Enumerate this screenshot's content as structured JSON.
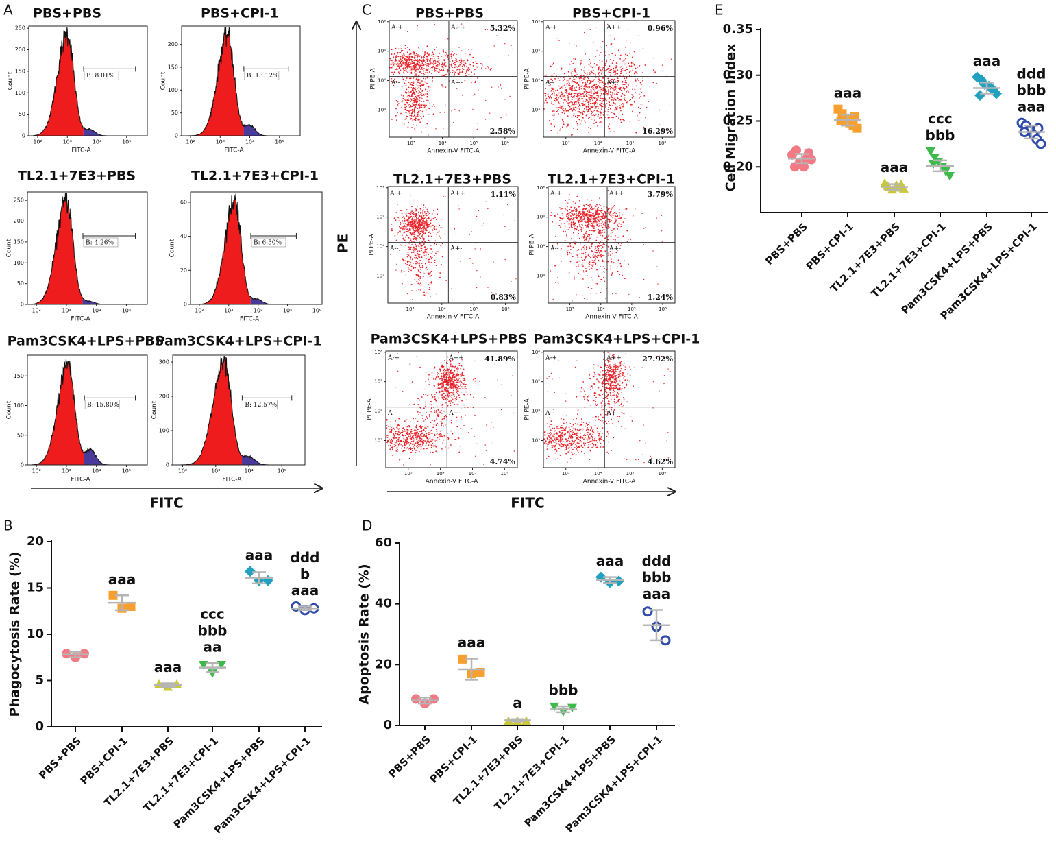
{
  "chart_data": [
    {
      "type": "histogram",
      "panel_label": "A",
      "axis_title": "FITC",
      "ylabel": "Count",
      "xlabel": "FITC-A",
      "log_x": true,
      "xticks": [
        {
          "value": 100,
          "label": "10²"
        },
        {
          "value": 1000,
          "label": "10³"
        },
        {
          "value": 10000,
          "label": "10⁴"
        },
        {
          "value": 100000,
          "label": "10⁵"
        },
        {
          "value": 1000000,
          "label": "10⁶"
        }
      ],
      "colors": {
        "negative": "#ee1c1c",
        "positive": "#4a3a9a"
      },
      "plots": [
        {
          "title": "PBS+PBS",
          "gate_label": "B: 8.01%",
          "ylim": [
            0,
            255
          ],
          "yticks": [
            0,
            50,
            100,
            150,
            200,
            250
          ],
          "xlim": [
            50,
            500000
          ]
        },
        {
          "title": "PBS+CPI-1",
          "gate_label": "B: 13.12%",
          "ylim": [
            0,
            240
          ],
          "yticks": [
            0,
            50,
            100,
            150,
            200
          ],
          "xlim": [
            50,
            500000
          ]
        },
        {
          "title": "TL2.1+7E3+PBS",
          "gate_label": "B: 4.26%",
          "ylim": [
            0,
            270
          ],
          "yticks": [
            0,
            50,
            100,
            150,
            200,
            250
          ],
          "xlim": [
            50,
            500000
          ]
        },
        {
          "title": "TL2.1+7E3+CPI-1",
          "gate_label": "B: 6.50%",
          "ylim": [
            0,
            66
          ],
          "yticks": [
            0,
            20,
            40,
            60
          ],
          "xlim": [
            50,
            1500000
          ]
        },
        {
          "title": "Pam3CSK4+LPS+PBS",
          "gate_label": "B: 15.80%",
          "ylim": [
            0,
            185
          ],
          "yticks": [
            0,
            50,
            100,
            150
          ],
          "xlim": [
            50,
            500000
          ]
        },
        {
          "title": "Pam3CSK4+LPS+CPI-1",
          "gate_label": "B: 12.57%",
          "ylim": [
            0,
            320
          ],
          "yticks": [
            0,
            100,
            200,
            300
          ],
          "xlim": [
            50,
            500000
          ]
        }
      ]
    },
    {
      "type": "scatter",
      "panel_label": "C",
      "x_axis_title": "FITC",
      "y_axis_title": "PE",
      "xlabel": "Annexin-V FITC-A",
      "ylabel": "PI PE-A",
      "quadrant_labels": [
        "A-+",
        "A++",
        "A--",
        "A+-"
      ],
      "color": "#e8242a",
      "log_x": true,
      "log_y": true,
      "xlim": [
        200,
        2500000
      ],
      "ylim": [
        120,
        1100000
      ],
      "xticks": [
        {
          "value": 1000,
          "label": "10³"
        },
        {
          "value": 10000,
          "label": "10⁴"
        },
        {
          "value": 100000,
          "label": "10⁵"
        },
        {
          "value": 1000000,
          "label": "10⁶"
        }
      ],
      "yticks": [
        {
          "value": 1000,
          "label": "10³"
        },
        {
          "value": 10000,
          "label": "10⁴"
        },
        {
          "value": 100000,
          "label": "10⁵"
        },
        {
          "value": 1000000,
          "label": "10⁶"
        }
      ],
      "plots": [
        {
          "title": "PBS+PBS",
          "upper_right": "5.32%",
          "lower_right": "2.58%"
        },
        {
          "title": "PBS+CPI-1",
          "upper_right": "0.96%",
          "lower_right": "16.29%"
        },
        {
          "title": "TL2.1+7E3+PBS",
          "upper_right": "1.11%",
          "lower_right": "0.83%"
        },
        {
          "title": "TL2.1+7E3+CPI-1",
          "upper_right": "3.79%",
          "lower_right": "1.24%"
        },
        {
          "title": "Pam3CSK4+LPS+PBS",
          "upper_right": "41.89%",
          "lower_right": "4.74%"
        },
        {
          "title": "Pam3CSK4+LPS+CPI-1",
          "upper_right": "27.92%",
          "lower_right": "4.62%"
        }
      ]
    },
    {
      "type": "dot",
      "panel_label": "B",
      "ylabel": "Phagocytosis Rate (%)",
      "categories": [
        "PBS+PBS",
        "PBS+CPI-1",
        "TL2.1+7E3+PBS",
        "TL2.1+7E3+CPI-1",
        "Pam3CSK4+LPS+PBS",
        "Pam3CSK4+LPS+CPI-1"
      ],
      "values": [
        [
          7.9,
          7.5,
          7.9
        ],
        [
          14.2,
          12.8,
          13.0
        ],
        [
          4.6,
          4.3,
          4.6
        ],
        [
          6.7,
          5.8,
          6.7
        ],
        [
          16.8,
          15.8,
          15.8
        ],
        [
          13.0,
          12.6,
          12.8
        ]
      ],
      "means": [
        7.8,
        13.4,
        4.5,
        6.4,
        16.1,
        12.8
      ],
      "errors": [
        0.3,
        0.8,
        0.2,
        0.5,
        0.6,
        0.2
      ],
      "colors": [
        "#f27a84",
        "#f7a030",
        "#c8c83a",
        "#3dbb4a",
        "#22a0c0",
        "#2f4aa8"
      ],
      "markers": [
        "circle",
        "square",
        "triangle",
        "triangle-down",
        "diamond",
        "circle-open"
      ],
      "annotations": [
        [],
        [
          "aaa"
        ],
        [
          "aaa"
        ],
        [
          "ccc",
          "bbb",
          "aa"
        ],
        [
          "aaa"
        ],
        [
          "ddd",
          "b",
          "aaa"
        ]
      ],
      "annotation_colors": {
        "a": "#f4a7c0",
        "b": "#f5a91f",
        "c": "#8a8a2e",
        "d": "#178a82"
      },
      "ylim": [
        0,
        20
      ],
      "yticks": [
        0,
        5,
        10,
        15,
        20
      ]
    },
    {
      "type": "dot",
      "panel_label": "D",
      "ylabel": "Apoptosis Rate (%)",
      "categories": [
        "PBS+PBS",
        "PBS+CPI-1",
        "TL2.1+7E3+PBS",
        "TL2.1+7E3+CPI-1",
        "Pam3CSK4+LPS+PBS",
        "Pam3CSK4+LPS+CPI-1"
      ],
      "values": [
        [
          8.7,
          7.2,
          8.7
        ],
        [
          21.8,
          17.0,
          17.5
        ],
        [
          1.5,
          1.5,
          1.5
        ],
        [
          6.2,
          4.5,
          5.8
        ],
        [
          48.8,
          47.0,
          47.5
        ],
        [
          37.5,
          32.5,
          28.0
        ]
      ],
      "means": [
        8.2,
        18.5,
        1.7,
        5.3,
        47.8,
        33.0
      ],
      "errors": [
        1.0,
        3.5,
        0.4,
        1.0,
        1.0,
        5.0
      ],
      "colors": [
        "#f27a84",
        "#f7a030",
        "#c8c83a",
        "#3dbb4a",
        "#22a0c0",
        "#2f4aa8"
      ],
      "markers": [
        "circle",
        "square",
        "triangle",
        "triangle-down",
        "diamond",
        "circle-open"
      ],
      "annotations": [
        [],
        [
          "aaa"
        ],
        [
          "a"
        ],
        [
          "bbb"
        ],
        [
          "aaa"
        ],
        [
          "ddd",
          "bbb",
          "aaa"
        ]
      ],
      "annotation_colors": {
        "a": "#f4a7c0",
        "b": "#f5a91f",
        "c": "#8a8a2e",
        "d": "#178a82"
      },
      "ylim": [
        0,
        60
      ],
      "yticks": [
        0,
        20,
        40,
        60
      ]
    },
    {
      "type": "dot",
      "panel_label": "E",
      "ylabel": "Cell Migration Index",
      "categories": [
        "PBS+PBS",
        "PBS+CPI-1",
        "TL2.1+7E3+PBS",
        "TL2.1+7E3+CPI-1",
        "Pam3CSK4+LPS+PBS",
        "Pam3CSK4+LPS+CPI-1"
      ],
      "values": [
        [
          0.213,
          0.218,
          0.205,
          0.2,
          0.21,
          0.208,
          0.2,
          0.215
        ],
        [
          0.263,
          0.258,
          0.252,
          0.248,
          0.245,
          0.242,
          0.25,
          0.255
        ],
        [
          0.182,
          0.178,
          0.175,
          0.18,
          0.177,
          0.176,
          0.179,
          0.181
        ],
        [
          0.217,
          0.21,
          0.205,
          0.2,
          0.195,
          0.19,
          0.203,
          0.198
        ],
        [
          0.298,
          0.295,
          0.29,
          0.288,
          0.285,
          0.28,
          0.278,
          0.283
        ],
        [
          0.248,
          0.245,
          0.24,
          0.235,
          0.23,
          0.225,
          0.238,
          0.242
        ]
      ],
      "means": [
        0.209,
        0.251,
        0.178,
        0.201,
        0.286,
        0.238
      ],
      "errors": [
        0.005,
        0.006,
        0.003,
        0.006,
        0.006,
        0.007
      ],
      "colors": [
        "#f27a84",
        "#f7a030",
        "#c8c83a",
        "#3dbb4a",
        "#22a0c0",
        "#2f4aa8"
      ],
      "markers": [
        "circle",
        "square",
        "triangle",
        "triangle-down",
        "diamond",
        "circle-open"
      ],
      "annotations": [
        [],
        [
          "aaa"
        ],
        [
          "aaa"
        ],
        [
          "ccc",
          "bbb"
        ],
        [
          "aaa"
        ],
        [
          "ddd",
          "bbb",
          "aaa"
        ]
      ],
      "annotation_colors": {
        "a": "#f4a7c0",
        "b": "#f5a91f",
        "c": "#8a8a2e",
        "d": "#178a82"
      },
      "ylim": [
        0.15,
        0.35
      ],
      "yticks": [
        {
          "value": 0.2,
          "label": "0.20"
        },
        0.25,
        {
          "value": 0.3,
          "label": "0.30"
        },
        0.35
      ]
    }
  ]
}
